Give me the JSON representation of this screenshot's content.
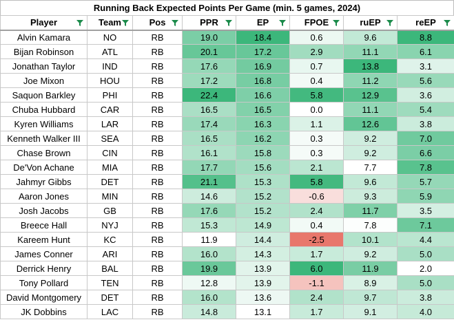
{
  "title": "Running Back Expected Points Per Game (min. 5 games, 2024)",
  "columns": [
    "Player",
    "Team",
    "Pos",
    "PPR",
    "EP",
    "FPOE",
    "ruEP",
    "reEP"
  ],
  "filter_icon_color": "#1a8a4a",
  "rows": [
    {
      "player": "Alvin Kamara",
      "team": "NO",
      "pos": "RB",
      "ppr": "19.0",
      "ep": "18.4",
      "fpoe": "0.6",
      "ruep": "9.6",
      "reep": "8.8"
    },
    {
      "player": "Bijan Robinson",
      "team": "ATL",
      "pos": "RB",
      "ppr": "20.1",
      "ep": "17.2",
      "fpoe": "2.9",
      "ruep": "11.1",
      "reep": "6.1"
    },
    {
      "player": "Jonathan Taylor",
      "team": "IND",
      "pos": "RB",
      "ppr": "17.6",
      "ep": "16.9",
      "fpoe": "0.7",
      "ruep": "13.8",
      "reep": "3.1"
    },
    {
      "player": "Joe Mixon",
      "team": "HOU",
      "pos": "RB",
      "ppr": "17.2",
      "ep": "16.8",
      "fpoe": "0.4",
      "ruep": "11.2",
      "reep": "5.6"
    },
    {
      "player": "Saquon Barkley",
      "team": "PHI",
      "pos": "RB",
      "ppr": "22.4",
      "ep": "16.6",
      "fpoe": "5.8",
      "ruep": "12.9",
      "reep": "3.6"
    },
    {
      "player": "Chuba Hubbard",
      "team": "CAR",
      "pos": "RB",
      "ppr": "16.5",
      "ep": "16.5",
      "fpoe": "0.0",
      "ruep": "11.1",
      "reep": "5.4"
    },
    {
      "player": "Kyren Williams",
      "team": "LAR",
      "pos": "RB",
      "ppr": "17.4",
      "ep": "16.3",
      "fpoe": "1.1",
      "ruep": "12.6",
      "reep": "3.8"
    },
    {
      "player": "Kenneth Walker III",
      "team": "SEA",
      "pos": "RB",
      "ppr": "16.5",
      "ep": "16.2",
      "fpoe": "0.3",
      "ruep": "9.2",
      "reep": "7.0"
    },
    {
      "player": "Chase Brown",
      "team": "CIN",
      "pos": "RB",
      "ppr": "16.1",
      "ep": "15.8",
      "fpoe": "0.3",
      "ruep": "9.2",
      "reep": "6.6"
    },
    {
      "player": "De'Von Achane",
      "team": "MIA",
      "pos": "RB",
      "ppr": "17.7",
      "ep": "15.6",
      "fpoe": "2.1",
      "ruep": "7.7",
      "reep": "7.8"
    },
    {
      "player": "Jahmyr Gibbs",
      "team": "DET",
      "pos": "RB",
      "ppr": "21.1",
      "ep": "15.3",
      "fpoe": "5.8",
      "ruep": "9.6",
      "reep": "5.7"
    },
    {
      "player": "Aaron Jones",
      "team": "MIN",
      "pos": "RB",
      "ppr": "14.6",
      "ep": "15.2",
      "fpoe": "-0.6",
      "ruep": "9.3",
      "reep": "5.9"
    },
    {
      "player": "Josh Jacobs",
      "team": "GB",
      "pos": "RB",
      "ppr": "17.6",
      "ep": "15.2",
      "fpoe": "2.4",
      "ruep": "11.7",
      "reep": "3.5"
    },
    {
      "player": "Breece Hall",
      "team": "NYJ",
      "pos": "RB",
      "ppr": "15.3",
      "ep": "14.9",
      "fpoe": "0.4",
      "ruep": "7.8",
      "reep": "7.1"
    },
    {
      "player": "Kareem Hunt",
      "team": "KC",
      "pos": "RB",
      "ppr": "11.9",
      "ep": "14.4",
      "fpoe": "-2.5",
      "ruep": "10.1",
      "reep": "4.4"
    },
    {
      "player": "James Conner",
      "team": "ARI",
      "pos": "RB",
      "ppr": "16.0",
      "ep": "14.3",
      "fpoe": "1.7",
      "ruep": "9.2",
      "reep": "5.0"
    },
    {
      "player": "Derrick Henry",
      "team": "BAL",
      "pos": "RB",
      "ppr": "19.9",
      "ep": "13.9",
      "fpoe": "6.0",
      "ruep": "11.9",
      "reep": "2.0"
    },
    {
      "player": "Tony Pollard",
      "team": "TEN",
      "pos": "RB",
      "ppr": "12.8",
      "ep": "13.9",
      "fpoe": "-1.1",
      "ruep": "8.9",
      "reep": "5.0"
    },
    {
      "player": "David Montgomery",
      "team": "DET",
      "pos": "RB",
      "ppr": "16.0",
      "ep": "13.6",
      "fpoe": "2.4",
      "ruep": "9.7",
      "reep": "3.8"
    },
    {
      "player": "JK Dobbins",
      "team": "LAC",
      "pos": "RB",
      "ppr": "14.8",
      "ep": "13.1",
      "fpoe": "1.7",
      "ruep": "9.1",
      "reep": "4.0"
    }
  ],
  "color_scale": {
    "green_low": "#ffffff",
    "green_high": "#3cb77b",
    "red_high": "#e8776c",
    "ranges": {
      "ppr": [
        11.9,
        22.4
      ],
      "ep": [
        13.1,
        18.4
      ],
      "fpoe": [
        -2.5,
        6.0
      ],
      "ruep": [
        7.7,
        13.8
      ],
      "reep": [
        2.0,
        8.8
      ]
    }
  }
}
